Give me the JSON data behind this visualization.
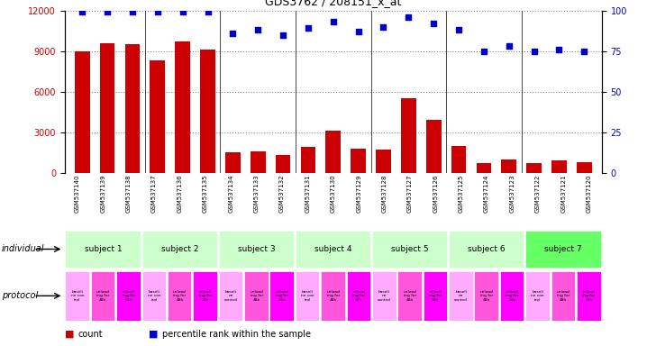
{
  "title": "GDS3762 / 208151_x_at",
  "samples": [
    "GSM537140",
    "GSM537139",
    "GSM537138",
    "GSM537137",
    "GSM537136",
    "GSM537135",
    "GSM537134",
    "GSM537133",
    "GSM537132",
    "GSM537131",
    "GSM537130",
    "GSM537129",
    "GSM537128",
    "GSM537127",
    "GSM537126",
    "GSM537125",
    "GSM537124",
    "GSM537123",
    "GSM537122",
    "GSM537121",
    "GSM537120"
  ],
  "counts": [
    9000,
    9600,
    9500,
    8300,
    9700,
    9100,
    1500,
    1600,
    1300,
    1900,
    3100,
    1800,
    1700,
    5500,
    3950,
    2000,
    700,
    1000,
    700,
    900,
    800
  ],
  "percentiles": [
    99,
    99,
    99,
    99,
    99,
    99,
    86,
    88,
    85,
    89,
    93,
    87,
    90,
    96,
    92,
    88,
    75,
    78,
    75,
    76,
    75
  ],
  "ylim_left": [
    0,
    12000
  ],
  "ylim_right": [
    0,
    100
  ],
  "yticks_left": [
    0,
    3000,
    6000,
    9000,
    12000
  ],
  "yticks_right": [
    0,
    25,
    50,
    75,
    100
  ],
  "bar_color": "#cc0000",
  "scatter_color": "#0000cc",
  "grid_color": "#888888",
  "subjects": [
    {
      "label": "subject 1",
      "start": 0,
      "end": 3
    },
    {
      "label": "subject 2",
      "start": 3,
      "end": 6
    },
    {
      "label": "subject 3",
      "start": 6,
      "end": 9
    },
    {
      "label": "subject 4",
      "start": 9,
      "end": 12
    },
    {
      "label": "subject 5",
      "start": 12,
      "end": 15
    },
    {
      "label": "subject 6",
      "start": 15,
      "end": 18
    },
    {
      "label": "subject 7",
      "start": 18,
      "end": 21
    }
  ],
  "protocols": [
    "baseli\nne con\ntrol",
    "unload\ning for\n48h",
    "reload\ning for\n24h",
    "baseli\nne con\ntrol",
    "unload\ning for\n48h",
    "reload\ning for\n24h",
    "baseli\nne\ncontrol",
    "unload\ning for\n48h",
    "reload\ning for\n24h",
    "baseli\nne con\ntrol",
    "unload\ning for\n48h",
    "reload\ning for\n24h",
    "baseli\nne\ncontrol",
    "unload\ning for\n48h",
    "reload\ning for\n24h",
    "baseli\nne\ncontrol",
    "unload\ning for\n48h",
    "reload\ning for\n24h",
    "baseli\nne con\ntrol",
    "unload\ning for\n48h",
    "reload\ning for\n24h"
  ],
  "subject_colors": [
    "#ccffcc",
    "#ccffcc",
    "#ccffcc",
    "#ccffcc",
    "#ccffcc",
    "#ccffcc",
    "#66ff66"
  ],
  "protocol_colors_cycle": [
    "#ffaaff",
    "#ff55dd",
    "#ff00ff"
  ],
  "individual_label": "individual",
  "protocol_label": "protocol",
  "legend_count": "count",
  "legend_percentile": "percentile rank within the sample",
  "bg_color": "#ffffff",
  "tick_label_bg": "#cccccc"
}
